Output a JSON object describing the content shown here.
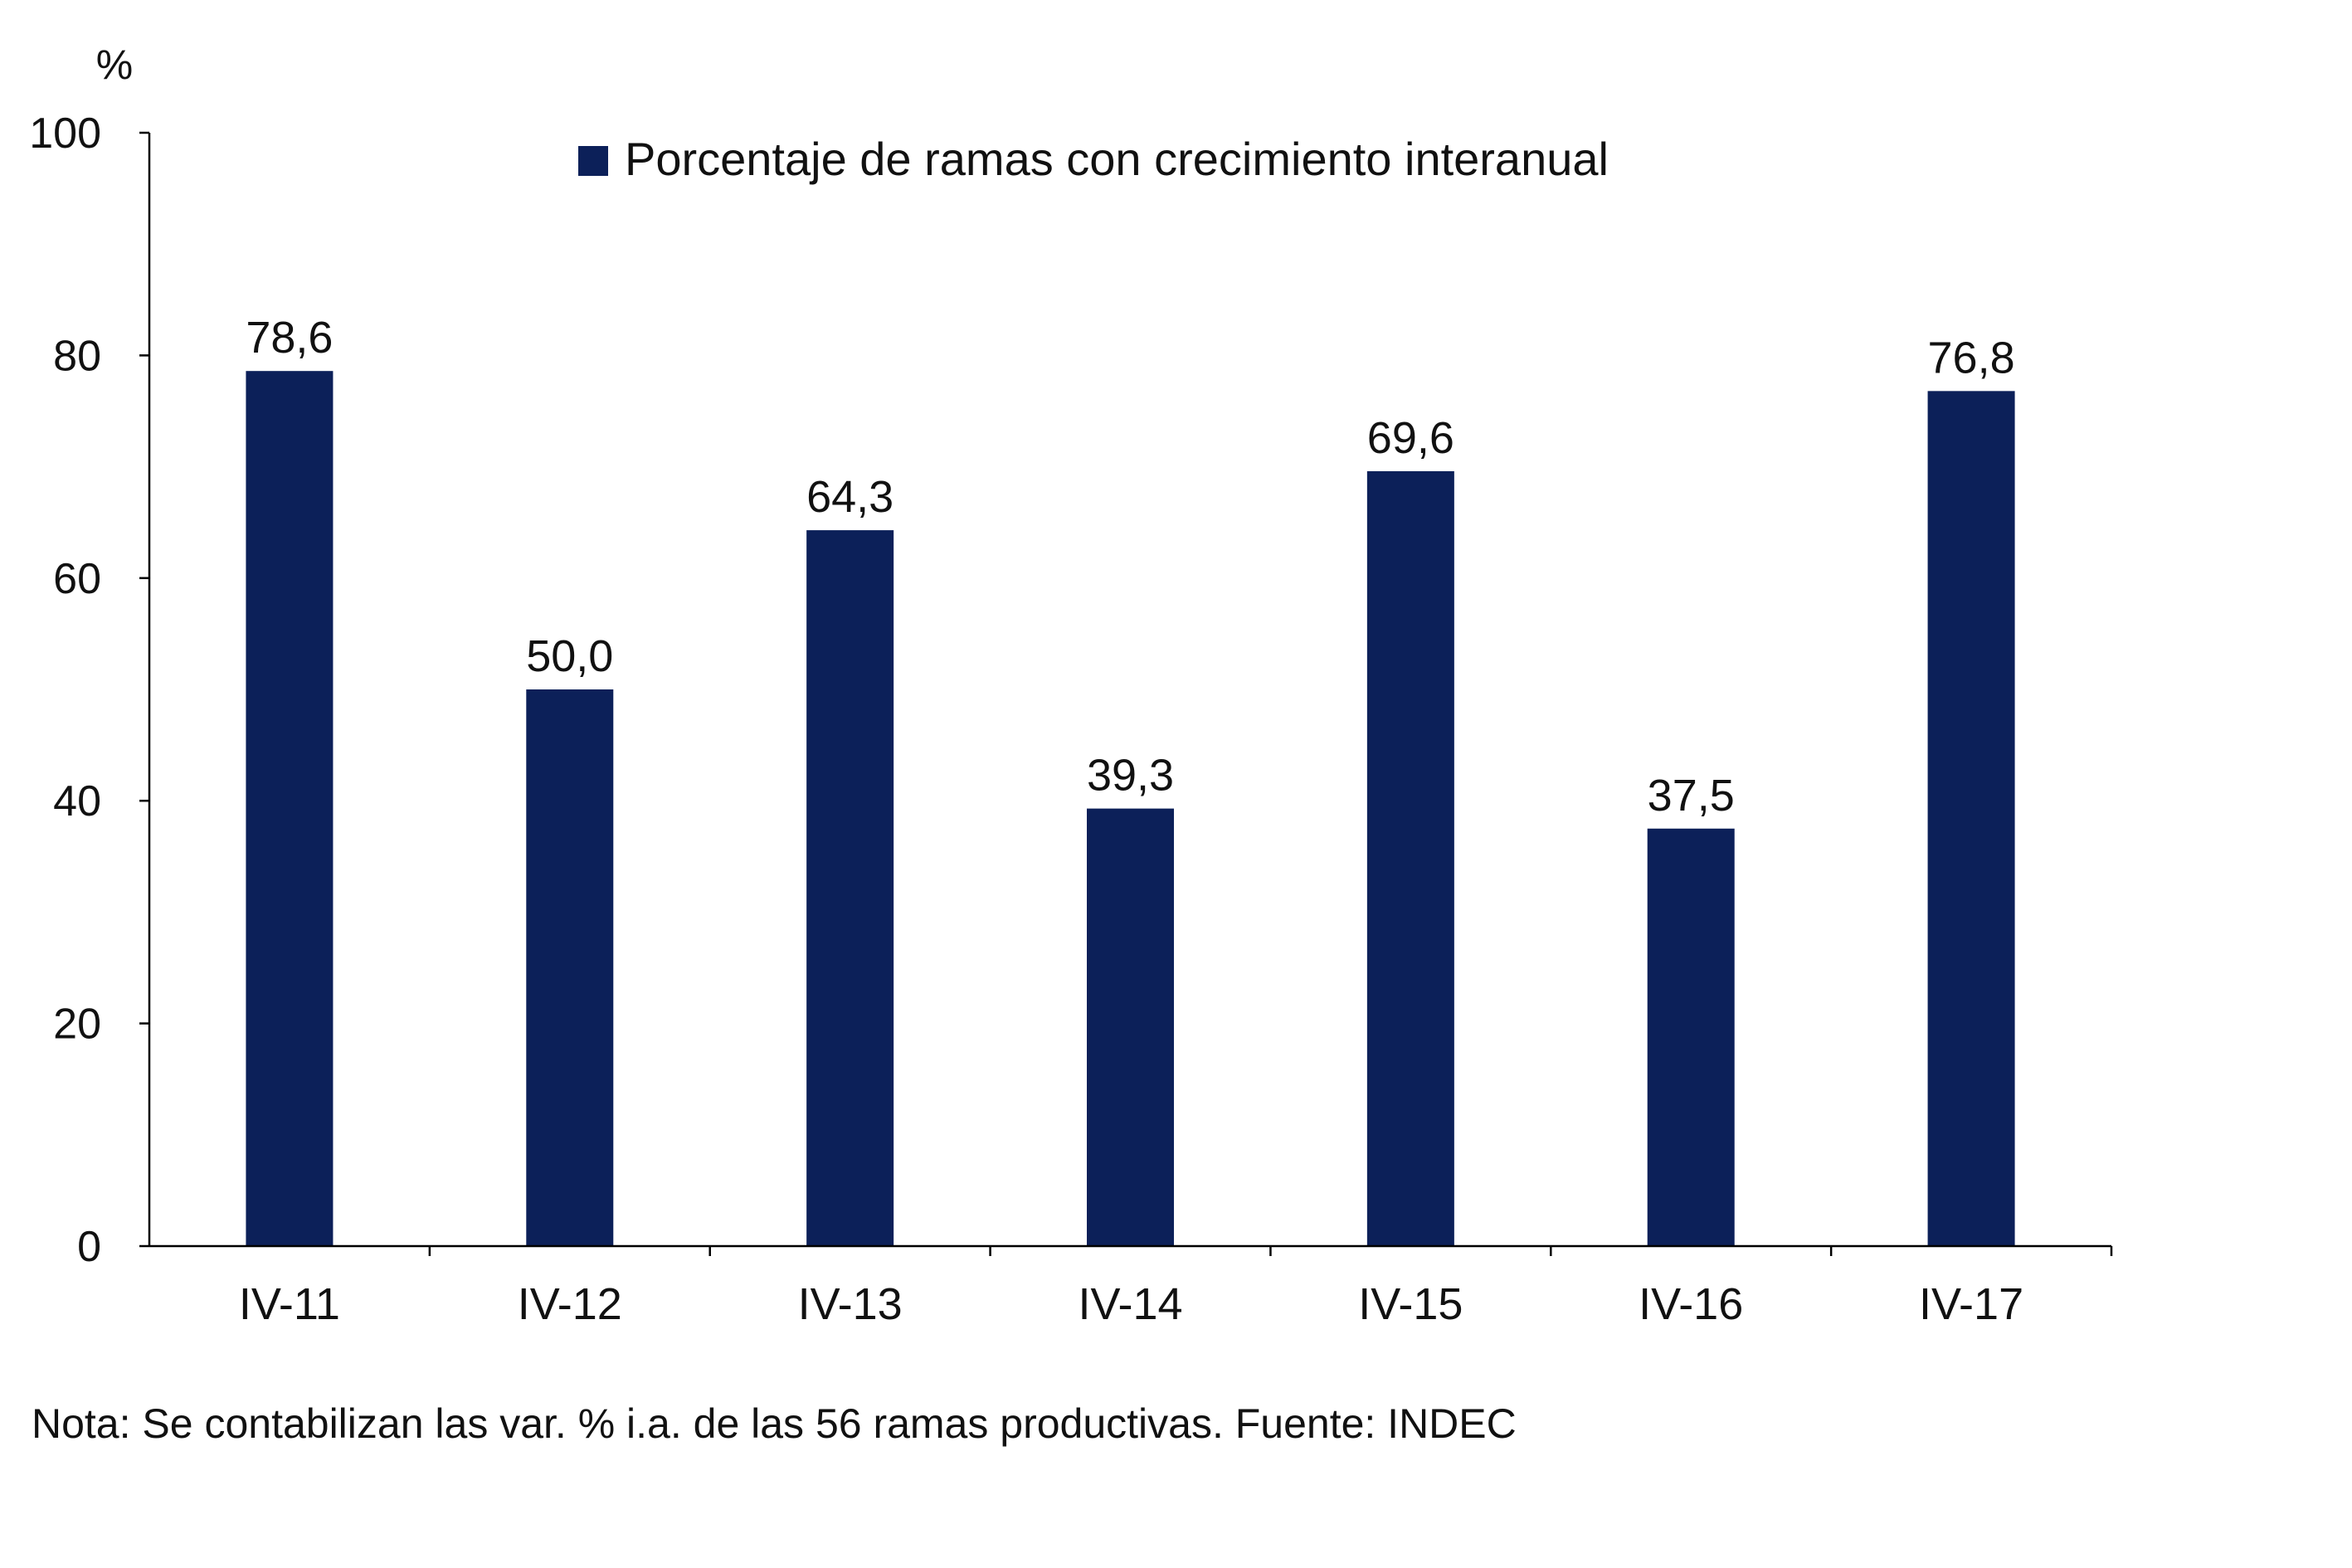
{
  "chart_data": {
    "type": "bar",
    "unit_label": "%",
    "categories": [
      "IV-11",
      "IV-12",
      "IV-13",
      "IV-14",
      "IV-15",
      "IV-16",
      "IV-17"
    ],
    "series": [
      {
        "name": "Porcentaje de ramas con crecimiento interanual",
        "values": [
          78.6,
          50.0,
          64.3,
          39.3,
          69.6,
          37.5,
          76.8
        ],
        "value_labels": [
          "78,6",
          "50,0",
          "64,3",
          "39,3",
          "69,6",
          "37,5",
          "76,8"
        ],
        "color": "#0c2059"
      }
    ],
    "ylim": [
      0,
      100
    ],
    "y_ticks": [
      0,
      20,
      40,
      60,
      80,
      100
    ],
    "grid": false,
    "legend_position": "top-center",
    "note": "Nota: Se contabilizan las var. % i.a. de las 56 ramas productivas. Fuente: INDEC"
  }
}
